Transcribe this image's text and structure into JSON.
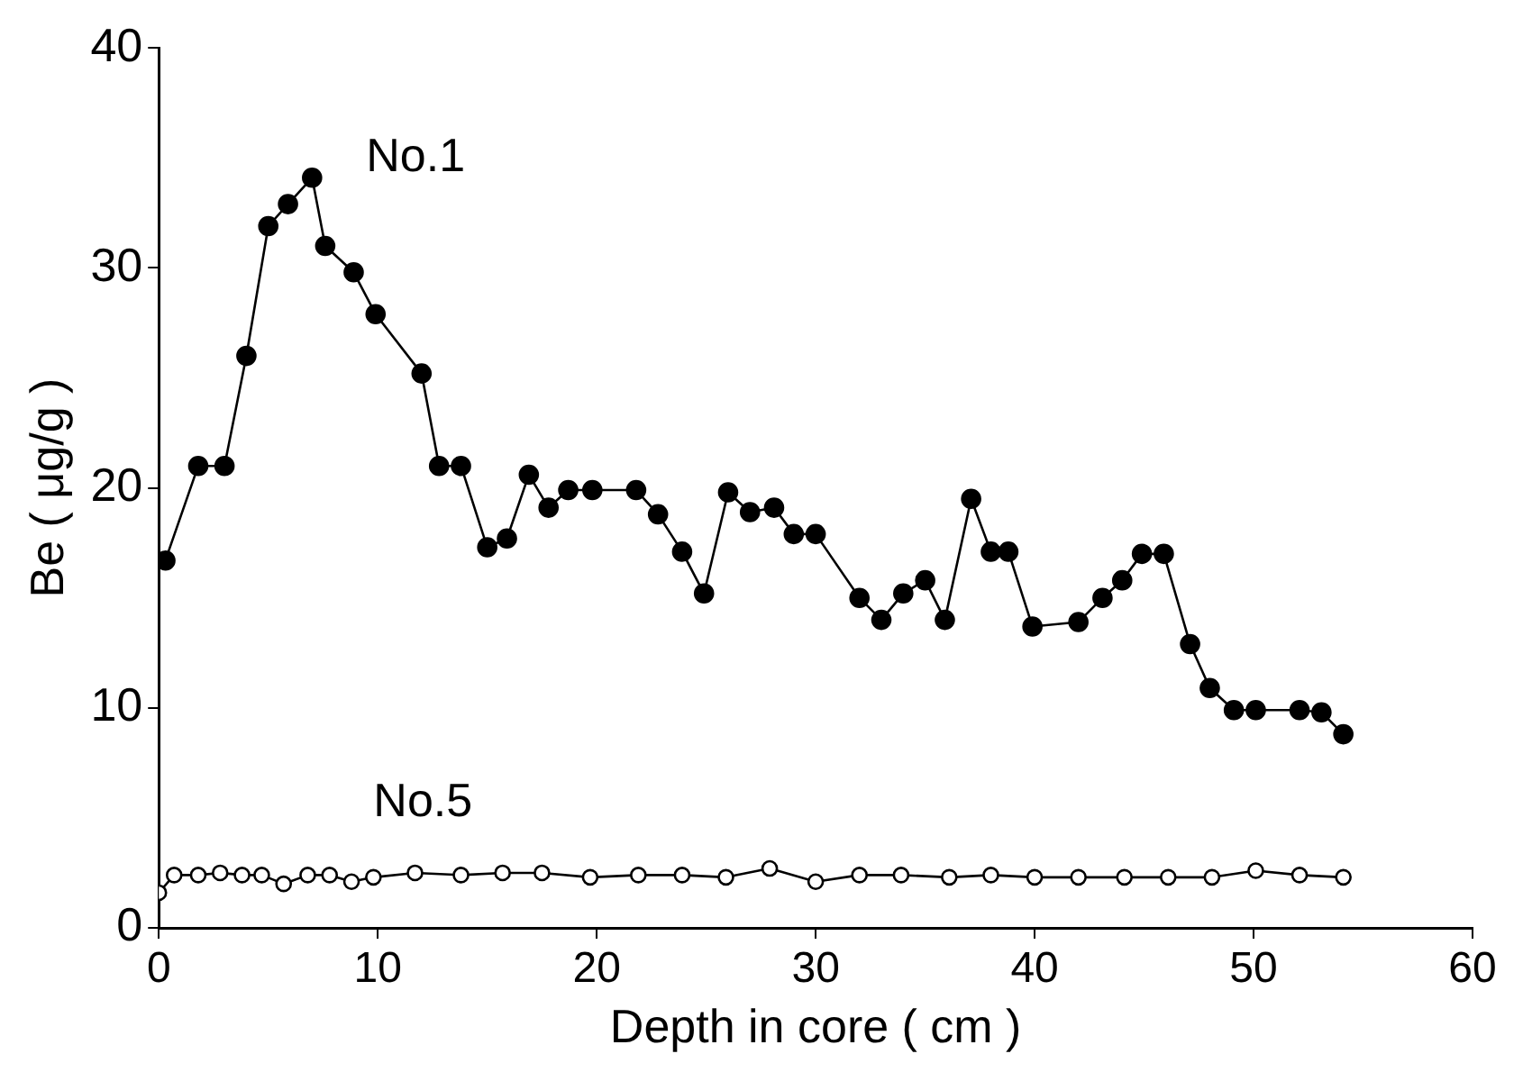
{
  "chart_data": {
    "type": "line",
    "xlabel": "Depth in core ( cm )",
    "ylabel": "Be ( μg/g )",
    "xlim": [
      0,
      60
    ],
    "xticks": [
      0,
      10,
      20,
      30,
      40,
      50,
      60
    ],
    "ylim": [
      0,
      40
    ],
    "yticks": [
      0,
      10,
      20,
      30,
      40
    ],
    "grid": false,
    "legend": false,
    "marker": "circle",
    "line_style": "solid",
    "series": [
      {
        "name": "No.1",
        "color": "#000000",
        "x": [
          0.3,
          1.8,
          3.0,
          4.0,
          5.0,
          5.9,
          7.0,
          7.6,
          8.9,
          9.9,
          12.0,
          12.8,
          13.8,
          15.0,
          15.9,
          16.9,
          17.8,
          18.7,
          19.8,
          21.8,
          22.8,
          23.9,
          24.9,
          26.0,
          27.0,
          28.1,
          29.0,
          30.0,
          32.0,
          33.0,
          34.0,
          35.0,
          35.9,
          37.1,
          38.0,
          38.8,
          39.9,
          42.0,
          43.1,
          44.0,
          44.9,
          45.9,
          47.1,
          48.0,
          49.1,
          50.1,
          52.1,
          53.1,
          54.1
        ],
        "values": [
          16.7,
          21,
          21,
          26,
          31.9,
          32.9,
          34.1,
          31,
          29.8,
          27.9,
          25.2,
          21,
          21,
          17.3,
          17.7,
          20.6,
          19.1,
          19.9,
          19.9,
          19.9,
          18.8,
          17.1,
          15.2,
          19.8,
          18.9,
          19.1,
          17.9,
          17.9,
          15,
          14,
          15.2,
          15.8,
          14,
          19.5,
          17.1,
          17.1,
          13.7,
          13.9,
          15,
          15.8,
          17,
          17,
          12.9,
          10.9,
          9.9,
          9.9,
          9.9,
          9.8,
          8.8
        ]
      },
      {
        "name": "No.5",
        "color": "#000000",
        "x": [
          0,
          0.7,
          1.8,
          2.8,
          3.8,
          4.7,
          5.7,
          6.8,
          7.8,
          8.8,
          9.8,
          11.7,
          13.8,
          15.7,
          17.5,
          19.7,
          21.9,
          23.9,
          25.9,
          27.9,
          30,
          32,
          33.9,
          36.1,
          38,
          40,
          42,
          44.1,
          46.1,
          48.1,
          50.1,
          52.1,
          54.1
        ],
        "values": [
          1.6,
          2.4,
          2.4,
          2.5,
          2.4,
          2.4,
          2.0,
          2.4,
          2.4,
          2.1,
          2.3,
          2.5,
          2.4,
          2.5,
          2.5,
          2.3,
          2.4,
          2.4,
          2.3,
          2.7,
          2.1,
          2.4,
          2.4,
          2.3,
          2.4,
          2.3,
          2.3,
          2.3,
          2.3,
          2.3,
          2.6,
          2.4,
          2.3
        ]
      }
    ]
  }
}
